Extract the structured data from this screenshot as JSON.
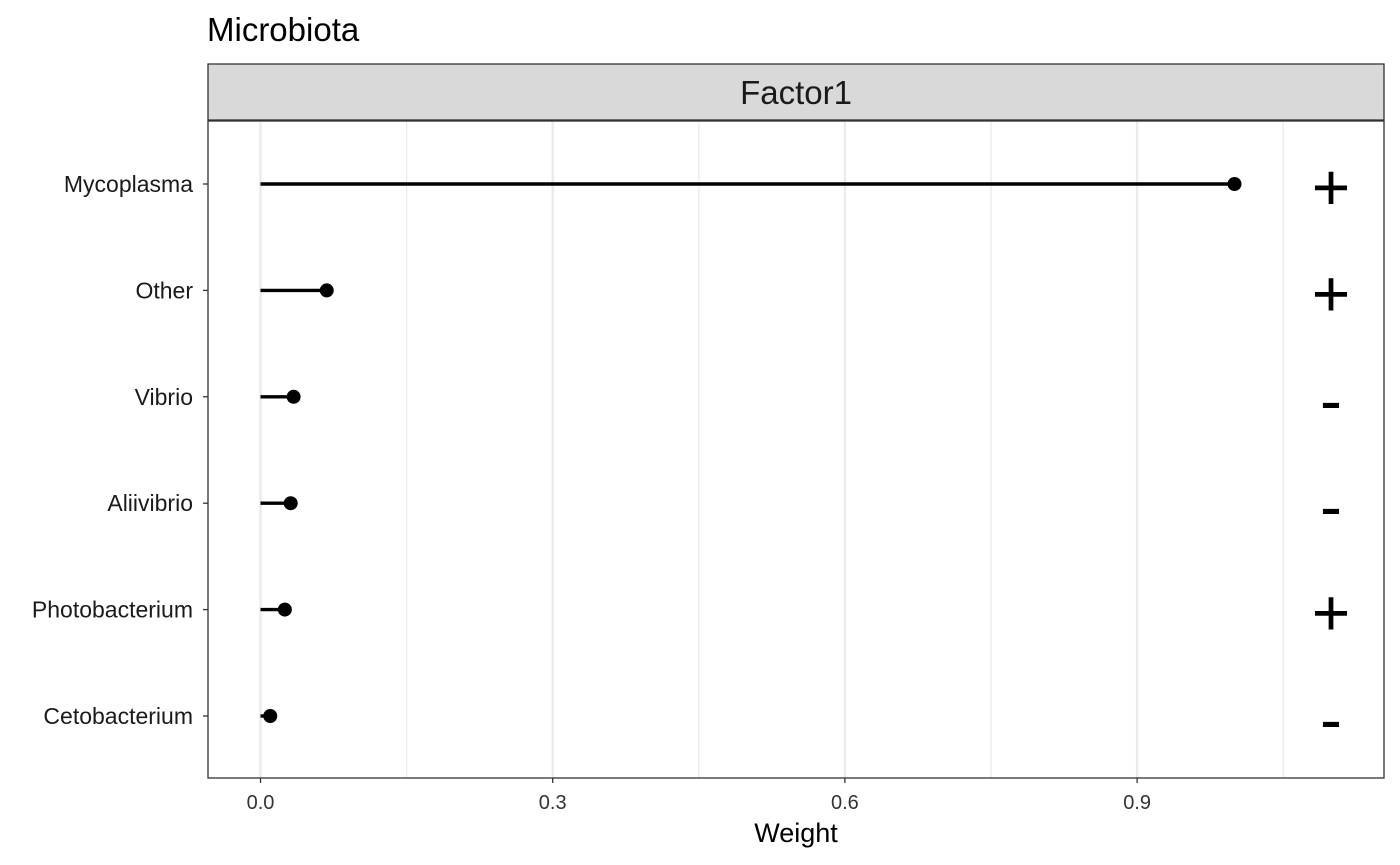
{
  "title": "Microbiota",
  "facet_label": "Factor1",
  "chart_data": {
    "type": "lollipop",
    "title": "Microbiota",
    "facet": "Factor1",
    "xlabel": "Weight",
    "ylabel": "",
    "xlim": [
      -0.09,
      1.15
    ],
    "x_ticks": [
      "0.0",
      "0.3",
      "0.6",
      "0.9"
    ],
    "categories": [
      "Mycoplasma",
      "Other",
      "Vibrio",
      "Aliivibrio",
      "Photobacterium",
      "Cetobacterium"
    ],
    "values": [
      1.0,
      0.068,
      0.034,
      0.031,
      0.025,
      0.01
    ],
    "signs": [
      "+",
      "+",
      "-",
      "-",
      "+",
      "-"
    ],
    "grid": true,
    "legend": "none"
  }
}
